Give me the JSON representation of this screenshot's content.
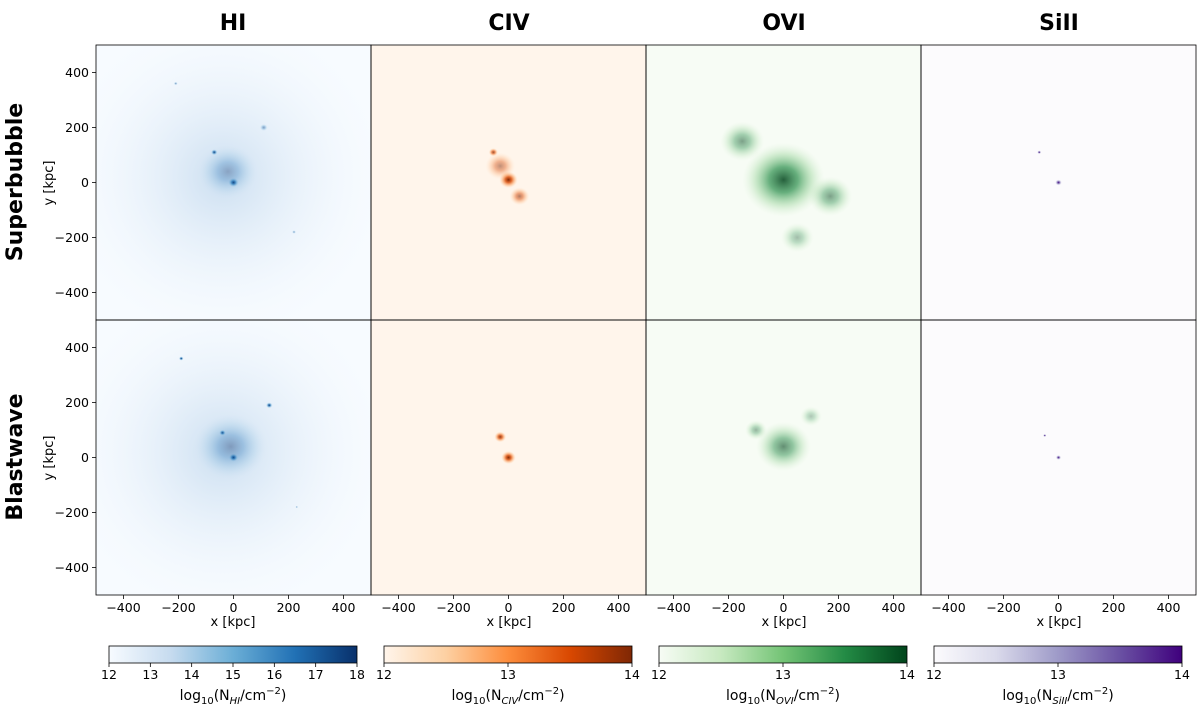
{
  "chart_data": {
    "type": "heatmap",
    "grid": {
      "rows": 2,
      "cols": 4
    },
    "column_titles": [
      "HI",
      "CIV",
      "OVI",
      "SiII"
    ],
    "row_titles": [
      "Superbubble",
      "Blastwave"
    ],
    "xlabel": "x [kpc]",
    "ylabel": "y [kpc]",
    "xlim": [
      -500,
      500
    ],
    "ylim": [
      -500,
      500
    ],
    "xticks": [
      -400,
      -200,
      0,
      200,
      400
    ],
    "yticks": [
      -400,
      -200,
      0,
      200,
      400
    ],
    "xtick_labels": [
      "−400",
      "−200",
      "0",
      "200",
      "400"
    ],
    "ytick_labels": [
      "−400",
      "−200",
      "0",
      "200",
      "400"
    ],
    "panels": [
      {
        "row": "Superbubble",
        "ion": "HI",
        "features": [
          {
            "x": -70,
            "y": 110,
            "intensity": 0.95,
            "size": 10
          },
          {
            "x": 0,
            "y": 0,
            "intensity": 1.0,
            "size": 16
          },
          {
            "x": -20,
            "y": 40,
            "intensity": 0.35,
            "size": 90
          },
          {
            "x": -210,
            "y": 360,
            "intensity": 0.5,
            "size": 6
          },
          {
            "x": 110,
            "y": 200,
            "intensity": 0.45,
            "size": 12
          },
          {
            "x": 220,
            "y": -180,
            "intensity": 0.45,
            "size": 6
          }
        ]
      },
      {
        "row": "Superbubble",
        "ion": "CIV",
        "features": [
          {
            "x": 0,
            "y": 10,
            "intensity": 1.0,
            "size": 28
          },
          {
            "x": -55,
            "y": 110,
            "intensity": 0.8,
            "size": 14
          },
          {
            "x": 40,
            "y": -50,
            "intensity": 0.6,
            "size": 30
          },
          {
            "x": -30,
            "y": 60,
            "intensity": 0.5,
            "size": 45
          }
        ]
      },
      {
        "row": "Superbubble",
        "ion": "OVI",
        "features": [
          {
            "x": 0,
            "y": 10,
            "intensity": 0.85,
            "size": 150
          },
          {
            "x": -150,
            "y": 150,
            "intensity": 0.5,
            "size": 80
          },
          {
            "x": 170,
            "y": -50,
            "intensity": 0.5,
            "size": 80
          },
          {
            "x": 50,
            "y": -200,
            "intensity": 0.35,
            "size": 60
          }
        ]
      },
      {
        "row": "Superbubble",
        "ion": "SiII",
        "features": [
          {
            "x": -70,
            "y": 110,
            "intensity": 1.0,
            "size": 6
          },
          {
            "x": 0,
            "y": 0,
            "intensity": 1.0,
            "size": 10
          }
        ]
      },
      {
        "row": "Blastwave",
        "ion": "HI",
        "features": [
          {
            "x": -190,
            "y": 360,
            "intensity": 1.0,
            "size": 7
          },
          {
            "x": 130,
            "y": 190,
            "intensity": 0.95,
            "size": 10
          },
          {
            "x": -40,
            "y": 90,
            "intensity": 0.95,
            "size": 10
          },
          {
            "x": 0,
            "y": 0,
            "intensity": 1.0,
            "size": 14
          },
          {
            "x": -10,
            "y": 40,
            "intensity": 0.4,
            "size": 110
          },
          {
            "x": 230,
            "y": -180,
            "intensity": 0.5,
            "size": 4
          }
        ]
      },
      {
        "row": "Blastwave",
        "ion": "CIV",
        "features": [
          {
            "x": -30,
            "y": 75,
            "intensity": 0.9,
            "size": 18
          },
          {
            "x": 0,
            "y": 0,
            "intensity": 1.0,
            "size": 22
          }
        ]
      },
      {
        "row": "Blastwave",
        "ion": "OVI",
        "features": [
          {
            "x": 0,
            "y": 40,
            "intensity": 0.6,
            "size": 100
          },
          {
            "x": -100,
            "y": 100,
            "intensity": 0.4,
            "size": 40
          },
          {
            "x": 100,
            "y": 150,
            "intensity": 0.3,
            "size": 40
          }
        ]
      },
      {
        "row": "Blastwave",
        "ion": "SiII",
        "features": [
          {
            "x": -50,
            "y": 80,
            "intensity": 1.0,
            "size": 5
          },
          {
            "x": 0,
            "y": 0,
            "intensity": 1.0,
            "size": 8
          }
        ]
      }
    ],
    "colorbars": [
      {
        "ion": "HI",
        "min": 12,
        "max": 18,
        "ticks": [
          12,
          13,
          14,
          15,
          16,
          17,
          18
        ],
        "label_main": "log",
        "label_sub_10": "10",
        "label_open": "(N",
        "label_sub": "HI",
        "label_close": "/cm",
        "label_sup": "−2",
        "label_end": ")",
        "cmap": [
          "#f7fbff",
          "#c6dbef",
          "#6baed6",
          "#2171b5",
          "#08306b"
        ]
      },
      {
        "ion": "CIV",
        "min": 12,
        "max": 14,
        "ticks": [
          12,
          13,
          14
        ],
        "label_main": "log",
        "label_sub_10": "10",
        "label_open": "(N",
        "label_sub": "CIV",
        "label_close": "/cm",
        "label_sup": "−2",
        "label_end": ")",
        "cmap": [
          "#fff5eb",
          "#fdd0a2",
          "#fd8d3c",
          "#d94801",
          "#7f2704"
        ]
      },
      {
        "ion": "OVI",
        "min": 12,
        "max": 14,
        "ticks": [
          12,
          13,
          14
        ],
        "label_main": "log",
        "label_sub_10": "10",
        "label_open": "(N",
        "label_sub": "OVI",
        "label_close": "/cm",
        "label_sup": "−2",
        "label_end": ")",
        "cmap": [
          "#f7fcf5",
          "#c7e9c0",
          "#74c476",
          "#238b45",
          "#00441b"
        ]
      },
      {
        "ion": "SiII",
        "min": 12,
        "max": 14,
        "ticks": [
          12,
          13,
          14
        ],
        "label_main": "log",
        "label_sub_10": "10",
        "label_open": "(N",
        "label_sub": "SiII",
        "label_close": "/cm",
        "label_sup": "−2",
        "label_end": ")",
        "cmap": [
          "#fcfbfd",
          "#dadaeb",
          "#9e9ac8",
          "#6a51a3",
          "#3f007d"
        ]
      }
    ]
  }
}
